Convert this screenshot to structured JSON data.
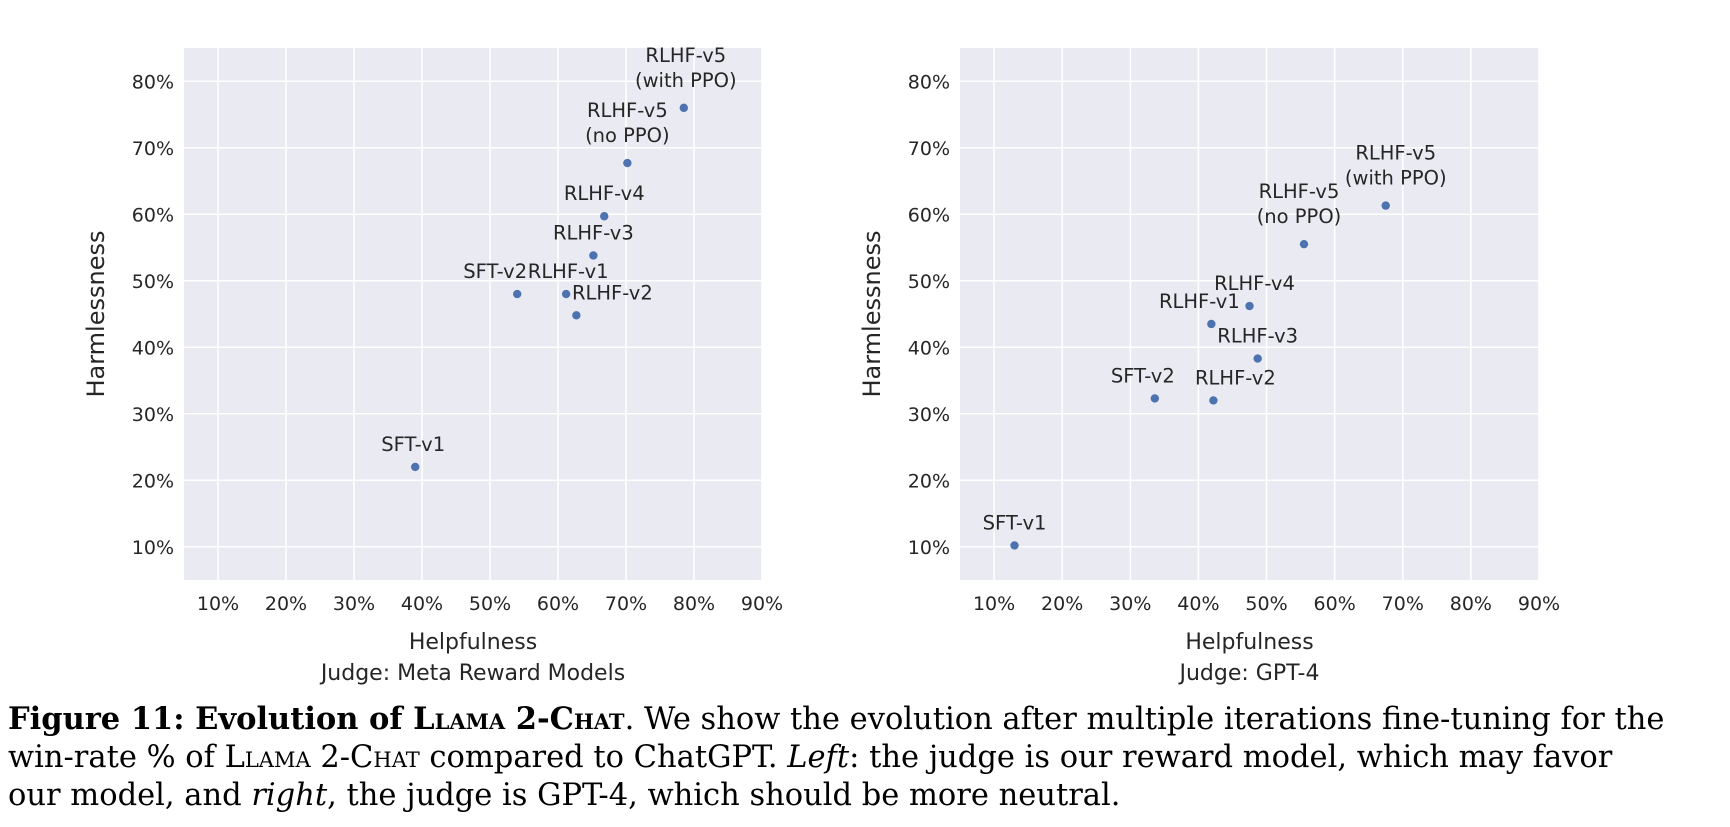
{
  "chart_data": [
    {
      "type": "scatter",
      "xlabel": "Helpfulness",
      "subtitle": "Judge: Meta Reward Models",
      "ylabel": "Harmlessness",
      "xlim": [
        0.05,
        0.9
      ],
      "ylim": [
        0.05,
        0.85
      ],
      "xticks": [
        "10%",
        "20%",
        "30%",
        "40%",
        "50%",
        "60%",
        "70%",
        "80%",
        "90%"
      ],
      "yticks": [
        "10%",
        "20%",
        "30%",
        "40%",
        "50%",
        "60%",
        "70%",
        "80%"
      ],
      "grid": true,
      "color": "#4c72b0",
      "points": [
        {
          "label": "SFT-v1",
          "x": 0.39,
          "y": 0.22
        },
        {
          "label": "SFT-v2",
          "x": 0.54,
          "y": 0.48
        },
        {
          "label": "RLHF-v1",
          "x": 0.612,
          "y": 0.48
        },
        {
          "label": "RLHF-v2",
          "x": 0.627,
          "y": 0.448
        },
        {
          "label": "RLHF-v3",
          "x": 0.652,
          "y": 0.538
        },
        {
          "label": "RLHF-v4",
          "x": 0.668,
          "y": 0.597
        },
        {
          "label": "RLHF-v5\n(no PPO)",
          "x": 0.702,
          "y": 0.677
        },
        {
          "label": "RLHF-v5\n(with PPO)",
          "x": 0.785,
          "y": 0.76
        }
      ]
    },
    {
      "type": "scatter",
      "xlabel": "Helpfulness",
      "subtitle": "Judge: GPT-4",
      "ylabel": "Harmlessness",
      "xlim": [
        0.05,
        0.9
      ],
      "ylim": [
        0.05,
        0.85
      ],
      "xticks": [
        "10%",
        "20%",
        "30%",
        "40%",
        "50%",
        "60%",
        "70%",
        "80%",
        "90%"
      ],
      "yticks": [
        "10%",
        "20%",
        "30%",
        "40%",
        "50%",
        "60%",
        "70%",
        "80%"
      ],
      "grid": true,
      "color": "#4c72b0",
      "points": [
        {
          "label": "SFT-v1",
          "x": 0.13,
          "y": 0.102
        },
        {
          "label": "SFT-v2",
          "x": 0.336,
          "y": 0.323
        },
        {
          "label": "RLHF-v1",
          "x": 0.419,
          "y": 0.435
        },
        {
          "label": "RLHF-v2",
          "x": 0.422,
          "y": 0.32
        },
        {
          "label": "RLHF-v3",
          "x": 0.487,
          "y": 0.383
        },
        {
          "label": "RLHF-v4",
          "x": 0.475,
          "y": 0.462
        },
        {
          "label": "RLHF-v5\n(no PPO)",
          "x": 0.555,
          "y": 0.555
        },
        {
          "label": "RLHF-v5\n(with PPO)",
          "x": 0.675,
          "y": 0.613
        }
      ]
    }
  ],
  "caption": {
    "label": "Figure 11: Evolution of ",
    "model_name_1": "Llama 2-Chat",
    "after_bold": ". We show the evolution after multiple iterations fine-tuning for the",
    "line2_start": "win-rate % of ",
    "model_name_2": "Llama 2-Chat",
    "line2_mid": " compared to ChatGPT. ",
    "left_word": "Left",
    "line2_end": ":  the judge is our reward model, which may favor",
    "line3_start": "our model, and ",
    "right_word": "right",
    "line3_end": ", the judge is GPT-4, which should be more neutral."
  }
}
